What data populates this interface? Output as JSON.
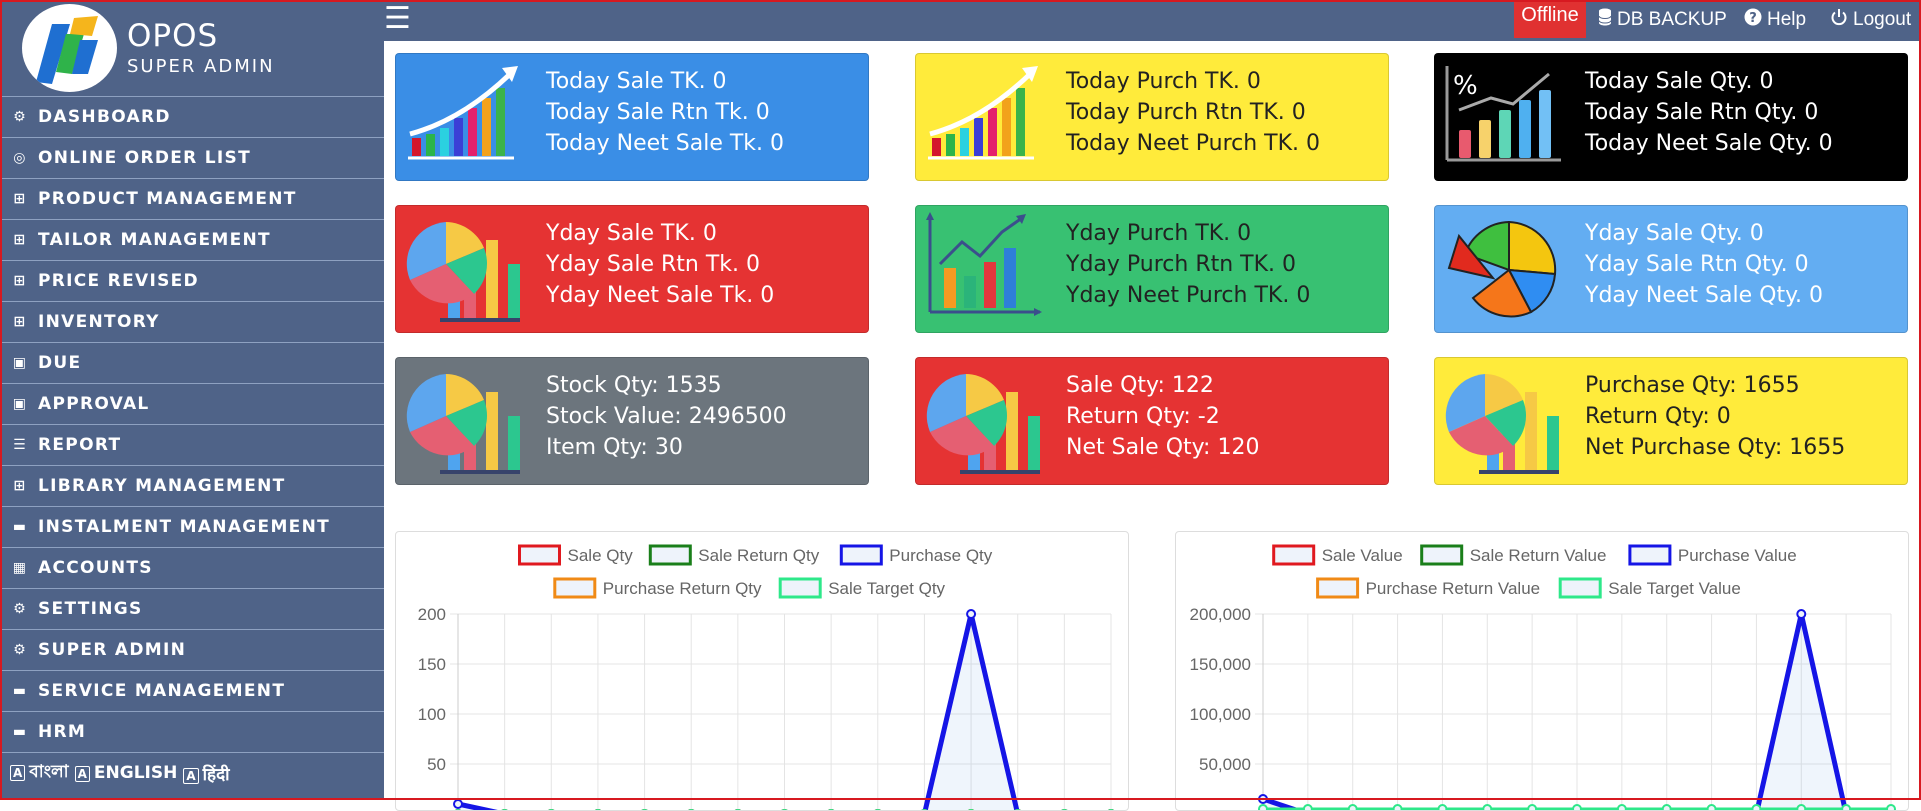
{
  "brand": {
    "name": "OPOS",
    "role": "SUPER ADMIN"
  },
  "sidebar": {
    "items": [
      {
        "label": "DASHBOARD",
        "icon": "dashboard-icon"
      },
      {
        "label": "ONLINE ORDER LIST",
        "icon": "globe-icon"
      },
      {
        "label": "PRODUCT MANAGEMENT",
        "icon": "grid-icon"
      },
      {
        "label": "TAILOR MANAGEMENT",
        "icon": "grid-icon"
      },
      {
        "label": "PRICE REVISED",
        "icon": "grid-icon"
      },
      {
        "label": "INVENTORY",
        "icon": "grid-icon"
      },
      {
        "label": "DUE",
        "icon": "money-icon"
      },
      {
        "label": "APPROVAL",
        "icon": "money-icon"
      },
      {
        "label": "REPORT",
        "icon": "report-icon"
      },
      {
        "label": "LIBRARY MANAGEMENT",
        "icon": "grid-icon"
      },
      {
        "label": "INSTALMENT MANAGEMENT",
        "icon": "wallet-icon"
      },
      {
        "label": "ACCOUNTS",
        "icon": "calculator-icon"
      },
      {
        "label": "SETTINGS",
        "icon": "gears-icon"
      },
      {
        "label": "SUPER ADMIN",
        "icon": "gears-icon"
      },
      {
        "label": "SERVICE MANAGEMENT",
        "icon": "wallet-icon"
      },
      {
        "label": "HRM",
        "icon": "wallet-icon"
      }
    ],
    "languages": [
      "বাংলা",
      "ENGLISH",
      "हिंदी"
    ]
  },
  "topbar": {
    "offline": "Offline",
    "db_backup": "DB BACKUP",
    "help": "Help",
    "logout": "Logout"
  },
  "colors": {
    "sidebar": "#4f6388",
    "blue": "#3a8ee6",
    "yellow": "#ffeb3b",
    "black": "#000000",
    "red": "#e53333",
    "green": "#38c172",
    "lightblue": "#63adf2",
    "grey": "#6c757d",
    "offline": "#e03131"
  },
  "cards": [
    {
      "lines": [
        "Today Sale TK. 0",
        "Today Sale Rtn Tk. 0",
        "Today Neet Sale Tk. 0"
      ],
      "bg": "#3a8ee6",
      "fg": "#ffffff",
      "icon": "growth-chart-icon"
    },
    {
      "lines": [
        "Today Purch TK. 0",
        "Today Purch Rtn TK. 0",
        "Today Neet Purch TK. 0"
      ],
      "bg": "#ffeb3b",
      "fg": "#222222",
      "icon": "growth-chart-icon"
    },
    {
      "lines": [
        "Today Sale Qty. 0",
        "Today Sale Rtn Qty. 0",
        "Today Neet Sale Qty. 0"
      ],
      "bg": "#000000",
      "fg": "#ffffff",
      "icon": "percent-chart-icon"
    },
    {
      "lines": [
        "Yday Sale TK. 0",
        "Yday Sale Rtn Tk. 0",
        "Yday Neet Sale Tk. 0"
      ],
      "bg": "#e53333",
      "fg": "#ffffff",
      "icon": "pie-bar-chart-icon"
    },
    {
      "lines": [
        "Yday Purch TK. 0",
        "Yday Purch Rtn TK. 0",
        "Yday Neet Purch TK. 0"
      ],
      "bg": "#38c172",
      "fg": "#222222",
      "icon": "trend-chart-icon"
    },
    {
      "lines": [
        "Yday Sale Qty. 0",
        "Yday Sale Rtn Qty. 0",
        "Yday Neet Sale Qty. 0"
      ],
      "bg": "#63adf2",
      "fg": "#ffffff",
      "icon": "pie-chart-icon"
    },
    {
      "lines": [
        "Stock Qty: 1535",
        "Stock Value: 2496500",
        "Item Qty: 30"
      ],
      "bg": "#6c757d",
      "fg": "#ffffff",
      "icon": "pie-bar-chart-icon"
    },
    {
      "lines": [
        "Sale Qty: 122",
        "Return Qty: -2",
        "Net Sale Qty: 120"
      ],
      "bg": "#e53333",
      "fg": "#ffffff",
      "icon": "pie-bar-chart-icon"
    },
    {
      "lines": [
        "Purchase Qty: 1655",
        "Return Qty: 0",
        "Net Purchase Qty: 1655"
      ],
      "bg": "#ffeb3b",
      "fg": "#222222",
      "icon": "pie-bar-chart-icon"
    }
  ],
  "chart_data": [
    {
      "type": "line",
      "legend_position": "top",
      "grid": true,
      "y_ticks": [
        50,
        100,
        150,
        200
      ],
      "ylim": [
        0,
        200
      ],
      "point_count": 15,
      "series": [
        {
          "name": "Sale Qty",
          "color": "#e0191f",
          "values": [
            0,
            0,
            0,
            0,
            0,
            0,
            0,
            0,
            0,
            0,
            0,
            0,
            0,
            0,
            0
          ]
        },
        {
          "name": "Sale Return Qty",
          "color": "#1a7f1a",
          "values": [
            0,
            0,
            0,
            0,
            0,
            0,
            0,
            0,
            0,
            0,
            0,
            0,
            0,
            0,
            0
          ]
        },
        {
          "name": "Purchase Qty",
          "color": "#1515e6",
          "values": [
            10,
            0,
            0,
            0,
            0,
            0,
            0,
            0,
            0,
            0,
            0,
            200,
            0,
            0,
            0
          ]
        },
        {
          "name": "Purchase Return Qty",
          "color": "#f08a16",
          "values": [
            0,
            0,
            0,
            0,
            0,
            0,
            0,
            0,
            0,
            0,
            0,
            0,
            0,
            0,
            0
          ]
        },
        {
          "name": "Sale Target Qty",
          "color": "#2ee88a",
          "values": [
            0,
            0,
            0,
            0,
            0,
            0,
            0,
            0,
            0,
            0,
            0,
            0,
            0,
            0,
            0
          ]
        }
      ]
    },
    {
      "type": "line",
      "legend_position": "top",
      "grid": true,
      "y_ticks": [
        "50,000",
        "100,000",
        "150,000",
        "200,000"
      ],
      "ylim": [
        0,
        200000
      ],
      "point_count": 15,
      "series": [
        {
          "name": "Sale Value",
          "color": "#e0191f",
          "values": [
            0,
            0,
            0,
            0,
            0,
            0,
            0,
            0,
            0,
            0,
            0,
            0,
            0,
            0,
            0
          ]
        },
        {
          "name": "Sale Return Value",
          "color": "#1a7f1a",
          "values": [
            0,
            0,
            0,
            0,
            0,
            0,
            0,
            0,
            0,
            0,
            0,
            0,
            0,
            0,
            0
          ]
        },
        {
          "name": "Purchase Value",
          "color": "#1515e6",
          "values": [
            15000,
            0,
            0,
            0,
            0,
            0,
            0,
            0,
            0,
            0,
            0,
            0,
            200000,
            0,
            0
          ]
        },
        {
          "name": "Purchase Return Value",
          "color": "#f08a16",
          "values": [
            0,
            0,
            0,
            0,
            0,
            0,
            0,
            0,
            0,
            0,
            0,
            0,
            0,
            0,
            0
          ]
        },
        {
          "name": "Sale Target Value",
          "color": "#2ee88a",
          "values": [
            5000,
            5000,
            5000,
            5000,
            5000,
            5000,
            5000,
            5000,
            5000,
            5000,
            5000,
            5000,
            5000,
            5000,
            5000
          ]
        }
      ]
    }
  ]
}
